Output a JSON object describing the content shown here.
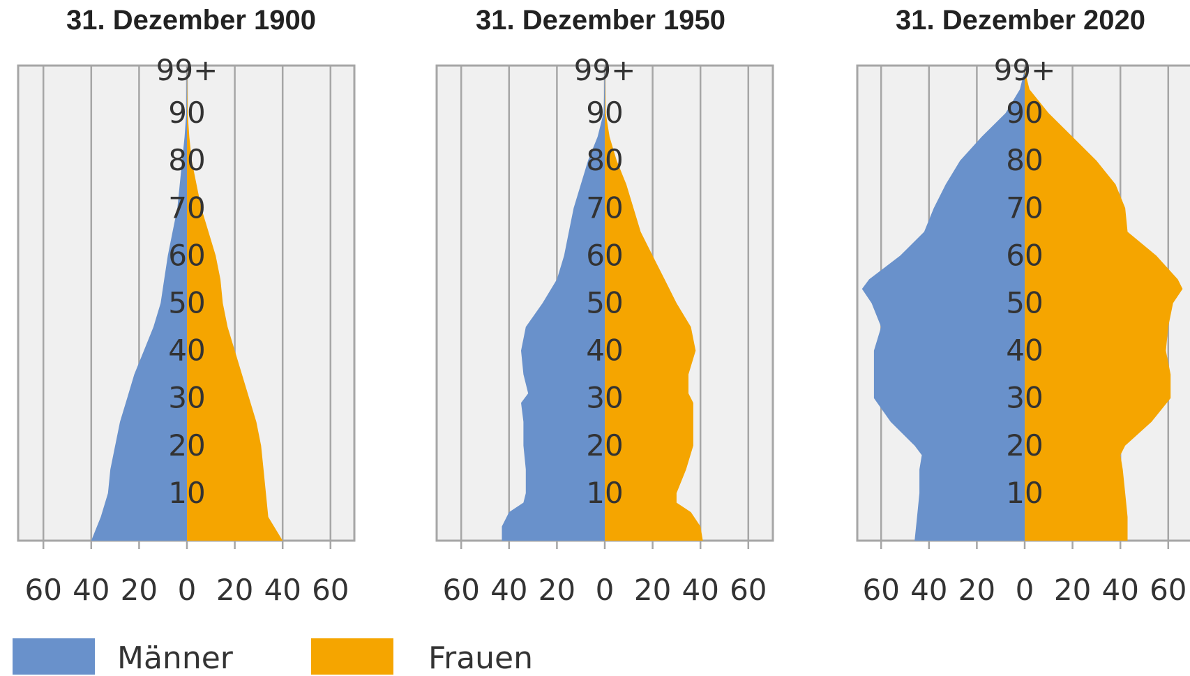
{
  "colors": {
    "maenner": "#6991CB",
    "frauen": "#F5A500",
    "panel": "#F0F0F0",
    "grid": "#A6A6A6",
    "text": "#333333"
  },
  "legend": {
    "maenner": "Männer",
    "frauen": "Frauen"
  },
  "chart_data": [
    {
      "type": "area",
      "title": "31. Dezember 1900",
      "xlim": [
        -70,
        70
      ],
      "xticks": [
        -60,
        -40,
        -20,
        0,
        20,
        40,
        60
      ],
      "xtick_labels": [
        "60",
        "40",
        "20",
        "0",
        "20",
        "40",
        "60"
      ],
      "ylim": [
        0,
        100
      ],
      "ytick_values": [
        10,
        20,
        30,
        40,
        50,
        60,
        70,
        80,
        90,
        99
      ],
      "ytick_labels": [
        "10",
        "20",
        "30",
        "40",
        "50",
        "60",
        "70",
        "80",
        "90",
        "99+"
      ],
      "grid": true,
      "series": [
        {
          "name": "Männer",
          "age": [
            0,
            5,
            10,
            15,
            20,
            25,
            30,
            35,
            40,
            45,
            50,
            55,
            60,
            65,
            70,
            75,
            80,
            85,
            90,
            95,
            99
          ],
          "values": [
            40,
            36,
            33,
            32,
            30,
            28,
            25,
            22,
            18,
            14,
            11,
            9.5,
            8,
            6,
            4,
            3,
            2,
            1,
            0.3,
            0.1,
            0
          ]
        },
        {
          "name": "Frauen",
          "age": [
            0,
            5,
            10,
            15,
            20,
            25,
            30,
            35,
            40,
            45,
            50,
            55,
            60,
            65,
            70,
            75,
            80,
            85,
            90,
            95,
            99
          ],
          "values": [
            40,
            34,
            33,
            32,
            31,
            29,
            26,
            23,
            20,
            17,
            15,
            14,
            12,
            9,
            6,
            4,
            2,
            1,
            0.3,
            0.1,
            0
          ]
        }
      ]
    },
    {
      "type": "area",
      "title": "31. Dezember 1950",
      "xlim": [
        -70,
        70
      ],
      "xticks": [
        -60,
        -40,
        -20,
        0,
        20,
        40,
        60
      ],
      "xtick_labels": [
        "60",
        "40",
        "20",
        "0",
        "20",
        "40",
        "60"
      ],
      "ylim": [
        0,
        100
      ],
      "ytick_values": [
        10,
        20,
        30,
        40,
        50,
        60,
        70,
        80,
        90,
        99
      ],
      "ytick_labels": [
        "10",
        "20",
        "30",
        "40",
        "50",
        "60",
        "70",
        "80",
        "90",
        "99+"
      ],
      "grid": true,
      "series": [
        {
          "name": "Männer",
          "age": [
            0,
            3,
            6,
            8,
            10,
            15,
            20,
            25,
            29,
            31,
            35,
            40,
            45,
            50,
            55,
            60,
            65,
            70,
            75,
            80,
            85,
            90,
            95,
            99
          ],
          "values": [
            43,
            43,
            40,
            34,
            33,
            33,
            34,
            34,
            35,
            32,
            34,
            35,
            33,
            26,
            20,
            17,
            15,
            13,
            10,
            7,
            3,
            0.5,
            0.2,
            0
          ]
        },
        {
          "name": "Frauen",
          "age": [
            0,
            3,
            6,
            8,
            10,
            15,
            20,
            25,
            29,
            31,
            35,
            40,
            45,
            50,
            55,
            60,
            65,
            70,
            75,
            80,
            85,
            90,
            95,
            99
          ],
          "values": [
            41,
            40,
            36,
            30,
            30,
            34,
            37,
            37,
            37,
            35,
            35,
            38,
            36,
            30,
            25,
            20,
            15,
            12,
            9,
            5,
            2,
            0.4,
            0.1,
            0
          ]
        }
      ]
    },
    {
      "type": "area",
      "title": "31. Dezember 2020",
      "xlim": [
        -70,
        70
      ],
      "xticks": [
        -60,
        -40,
        -20,
        0,
        20,
        40,
        60
      ],
      "xtick_labels": [
        "60",
        "40",
        "20",
        "0",
        "20",
        "40",
        "60"
      ],
      "ylim": [
        0,
        100
      ],
      "ytick_values": [
        10,
        20,
        30,
        40,
        50,
        60,
        70,
        80,
        90,
        99
      ],
      "ytick_labels": [
        "10",
        "20",
        "30",
        "40",
        "50",
        "60",
        "70",
        "80",
        "90",
        "99+"
      ],
      "grid": true,
      "series": [
        {
          "name": "Männer",
          "age": [
            0,
            5,
            10,
            15,
            18,
            20,
            25,
            30,
            35,
            40,
            45,
            50,
            53,
            55,
            60,
            65,
            70,
            75,
            80,
            85,
            90,
            95,
            99
          ],
          "values": [
            46,
            45,
            44,
            44,
            43,
            46,
            56,
            63,
            63,
            63,
            60,
            64,
            68,
            65,
            52,
            42,
            38,
            33,
            27,
            18,
            8,
            2,
            0
          ]
        },
        {
          "name": "Frauen",
          "age": [
            0,
            5,
            10,
            15,
            18,
            20,
            25,
            30,
            35,
            40,
            45,
            50,
            53,
            55,
            60,
            65,
            70,
            75,
            80,
            85,
            90,
            95,
            99
          ],
          "values": [
            43,
            43,
            42,
            41,
            40,
            42,
            53,
            61,
            61,
            59,
            60,
            62,
            66,
            64,
            55,
            43,
            42,
            38,
            30,
            20,
            10,
            2,
            0
          ]
        }
      ]
    }
  ]
}
